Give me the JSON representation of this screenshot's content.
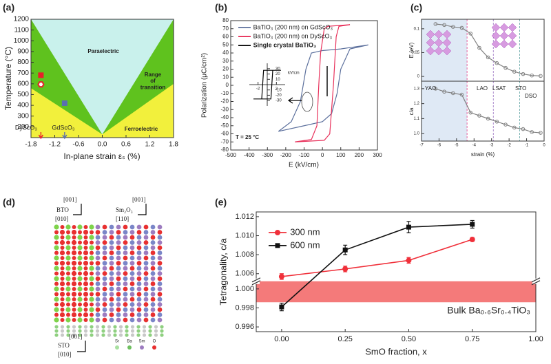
{
  "panel_labels": [
    "(a)",
    "(b)",
    "(c)",
    "(d)",
    "(e)"
  ],
  "chart_data": [
    {
      "type": "area",
      "xlabel": "In-plane strain εₛ (%)",
      "ylabel": "Temperature (°C)",
      "xlim": [
        -1.8,
        1.8
      ],
      "ylim": [
        100,
        1200
      ],
      "xticks": [
        -1.8,
        -1.2,
        -0.6,
        {
          "value": 0,
          "label": "0.0"
        },
        0.6,
        1.2,
        1.8
      ],
      "yticks": [
        200,
        300,
        400,
        500,
        600,
        700,
        800,
        900,
        1000,
        1100,
        1200
      ],
      "regions": [
        {
          "color": "#f2f03c",
          "x": [
            -1.8,
            1.8,
            1.8,
            -1.8
          ],
          "y": [
            100,
            100,
            1200,
            1200
          ]
        },
        {
          "color": "#5fc21e",
          "x": [
            -1.8,
            0,
            1.8,
            1.8,
            -1.8
          ],
          "y": [
            560,
            130,
            600,
            1200,
            1200
          ]
        },
        {
          "color": "#c9f1ec",
          "x": [
            -1.8,
            0,
            1.8
          ],
          "y": [
            1200,
            130,
            1200
          ]
        }
      ],
      "series": [
        {
          "color": "#e8202a",
          "marker": "square",
          "x": [
            -1.55
          ],
          "values": [
            680
          ]
        },
        {
          "color": "#e8202a",
          "marker": "hexagon",
          "x": [
            -1.55
          ],
          "values": [
            595
          ]
        },
        {
          "color": "#5a6fb0",
          "marker": "square",
          "x": [
            -0.95
          ],
          "values": [
            420
          ]
        }
      ],
      "annotations": [
        "Paraelectric",
        "Range\nof\ntransition",
        "Ferroelectric",
        "DyScO₃",
        "GdScO₃"
      ]
    },
    {
      "type": "line",
      "xlabel": "E (kV/cm)",
      "ylabel": "Polarization (μC/cm²)",
      "xlim": [
        -500,
        300
      ],
      "ylim": [
        -80,
        80
      ],
      "xticks": [
        -500,
        -400,
        -300,
        -200,
        -100,
        0,
        100,
        200,
        300
      ],
      "yticks": [
        -80,
        -70,
        -60,
        -50,
        -40,
        -30,
        -20,
        -10,
        0,
        10,
        20,
        30,
        40,
        50,
        60,
        70,
        80
      ],
      "series": [
        {
          "name": "BaTiO₃ (200 nm) on GdScO₃",
          "color": "#5b6f9c",
          "x": [
            -240,
            -100,
            0,
            50,
            80,
            100,
            150,
            250,
            100,
            0,
            -60,
            -90,
            -120,
            -170,
            -240
          ],
          "values": [
            -57,
            -50,
            -45,
            -35,
            -10,
            20,
            45,
            50,
            45,
            43,
            40,
            20,
            -20,
            -45,
            -57
          ]
        },
        {
          "name": "BaTiO₃ (200 nm) on DyScO₃",
          "color": "#e8305a",
          "x": [
            -150,
            10,
            40,
            60,
            75,
            90,
            150,
            30,
            10,
            -10,
            -20,
            -30,
            -60,
            -150
          ],
          "values": [
            -70,
            -68,
            -60,
            0,
            60,
            73,
            75,
            73,
            70,
            40,
            0,
            -50,
            -67,
            -70
          ]
        }
      ],
      "annotations": [
        "T = 25 °C"
      ]
    },
    {
      "type": "line",
      "xlabel": "kV/cm",
      "xlim": [
        -3,
        3
      ],
      "ylim": [
        -35,
        35
      ],
      "xticks": [
        -2,
        2
      ],
      "yticks": [
        -30,
        -20,
        -10,
        10,
        20,
        30
      ],
      "series": [
        {
          "name": "Single crystal BaTiO₃",
          "color": "#000000",
          "x": [
            -3,
            0.8,
            1,
            1.2,
            3,
            -0.8,
            -1,
            -1.2,
            -3
          ],
          "values": [
            -27,
            -27,
            0,
            27,
            27,
            27,
            0,
            -27,
            -27
          ]
        }
      ]
    },
    {
      "type": "line",
      "ylabel": "E (eV)",
      "xlim": [
        -7,
        0
      ],
      "ylim": [
        -0.01,
        0.12
      ],
      "yticks": [
        0,
        0.05,
        0.1
      ],
      "regions": [
        {
          "color": "#dfe9f5",
          "x": [
            -7,
            -4.4,
            -4.4,
            -7
          ],
          "y": [
            -0.01,
            -0.01,
            0.12,
            0.12
          ]
        }
      ],
      "vlines": [
        {
          "value": -4.4,
          "color": "#e0408a"
        },
        {
          "value": -2.9,
          "color": "#9a70c0"
        },
        {
          "value": -1.4,
          "color": "#5aa0a0"
        }
      ],
      "series": [
        {
          "color": "#808080",
          "marker": "circle",
          "x": [
            -6.2,
            -5.7,
            -5.2,
            -4.7,
            -4.2,
            -3.7,
            -3.2,
            -2.7,
            -2.2,
            -1.7,
            -1.2,
            -0.7,
            -0.2
          ],
          "values": [
            0.11,
            0.108,
            0.104,
            0.102,
            0.09,
            0.06,
            0.04,
            0.028,
            0.018,
            0.01,
            0.005,
            0.002,
            0.001
          ]
        }
      ]
    },
    {
      "type": "line",
      "xlabel": "strain (%)",
      "ylabel": "c/a",
      "xlim": [
        -7,
        0
      ],
      "ylim": [
        0.95,
        1.35
      ],
      "xticks": [
        -7,
        -6,
        -5,
        -4,
        -3,
        -2,
        -1,
        0
      ],
      "yticks": [
        {
          "value": 1,
          "label": "1.0"
        },
        1.1,
        1.2,
        1.3
      ],
      "regions": [
        {
          "color": "#dfe9f5",
          "x": [
            -7,
            -4.4,
            -4.4,
            -7
          ],
          "y": [
            0.95,
            0.95,
            1.35,
            1.35
          ]
        }
      ],
      "vlines": [
        {
          "value": -4.4,
          "color": "#e0408a"
        },
        {
          "value": -2.9,
          "color": "#9a70c0"
        },
        {
          "value": -1.4,
          "color": "#5aa0a0"
        }
      ],
      "series": [
        {
          "color": "#808080",
          "marker": "circle",
          "x": [
            -6.2,
            -5.7,
            -5.2,
            -4.7,
            -4.2,
            -3.7,
            -3.2,
            -2.7,
            -2.2,
            -1.7,
            -1.2,
            -0.7,
            -0.2
          ],
          "values": [
            1.3,
            1.28,
            1.27,
            1.26,
            1.14,
            1.12,
            1.1,
            1.08,
            1.06,
            1.04,
            1.03,
            1.01,
            1.005
          ]
        }
      ],
      "annotations": [
        "YAO",
        "LAO",
        "LSAT",
        "STO",
        "DSO"
      ]
    },
    {
      "type": "line",
      "xlabel": "SmO fraction, x",
      "ylabel": "Tetragonality, c/a",
      "xlim": [
        -0.1,
        1.0
      ],
      "ylim": [
        0.9955,
        1.0125
      ],
      "ybreak": [
        1.0008,
        1.0052
      ],
      "xticks": [
        {
          "value": 0,
          "label": "0.00"
        },
        0.25,
        {
          "value": 0.5,
          "label": "0.50"
        },
        0.75,
        {
          "value": 1,
          "label": "1.00"
        }
      ],
      "yticks": [
        0.996,
        0.998,
        {
          "value": 1,
          "label": "1.000"
        },
        1.006,
        1.008,
        {
          "value": 1.01,
          "label": "1.010"
        },
        1.012
      ],
      "regions": [
        {
          "color": "#f47a7a",
          "x": [
            -0.1,
            1.0,
            1.0,
            -0.1
          ],
          "y": [
            0.9986,
            0.9986,
            1.0008,
            1.0008
          ]
        }
      ],
      "x": [
        0,
        0.25,
        0.5,
        0.75
      ],
      "series": [
        {
          "name": "300 nm",
          "color": "#f0303a",
          "marker": "circle",
          "values": [
            1.0057,
            1.0065,
            1.0074,
            1.0096
          ],
          "errors": [
            0.0003,
            0.0003,
            0.0003,
            0.0002
          ]
        },
        {
          "name": "600 nm",
          "color": "#111111",
          "marker": "square",
          "values": [
            0.9981,
            1.0085,
            1.0109,
            1.0112
          ],
          "errors": [
            0.0004,
            0.0005,
            0.0006,
            0.0004
          ]
        }
      ],
      "annotations": [
        "Bulk Ba₀.₆Sr₀.₄TiO₃"
      ]
    }
  ],
  "structure": {
    "labels": [
      "[001]",
      "BTO",
      "[010]",
      "[001]",
      "Sm₂O₃",
      "[110]",
      "[001]",
      "STO",
      "[010]"
    ],
    "legend": [
      "Sr",
      "Ba",
      "Sm",
      "O"
    ]
  }
}
